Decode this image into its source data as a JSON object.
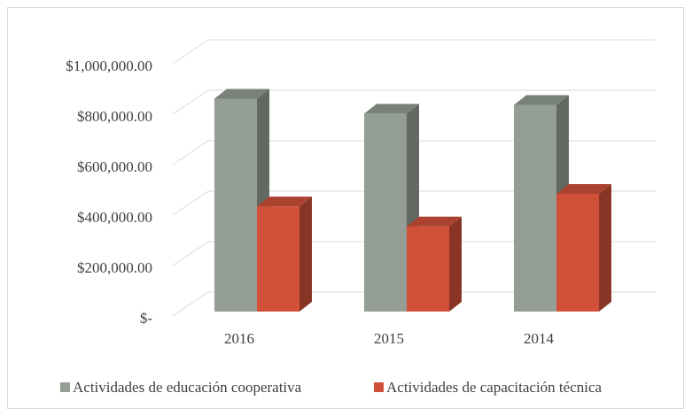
{
  "chart_data": {
    "type": "bar3d",
    "categories": [
      "2016",
      "2015",
      "2014"
    ],
    "series": [
      {
        "name": "Actividades de educación cooperativa",
        "color": "#949e94",
        "values": [
          850000,
          790000,
          825000
        ]
      },
      {
        "name": "Actividades de capacitación técnica",
        "color": "#d0503a",
        "values": [
          420000,
          340000,
          470000
        ]
      }
    ],
    "ylim": [
      0,
      1000000
    ],
    "yticks": [
      {
        "value": 0,
        "label": "$-"
      },
      {
        "value": 200000,
        "label": "$200,000.00"
      },
      {
        "value": 400000,
        "label": "$400,000.00"
      },
      {
        "value": 600000,
        "label": "$600,000.00"
      },
      {
        "value": 800000,
        "label": "$800,000.00"
      },
      {
        "value": 1000000,
        "label": "$1,000,000.00"
      }
    ],
    "grid": true,
    "legend": "bottom"
  }
}
